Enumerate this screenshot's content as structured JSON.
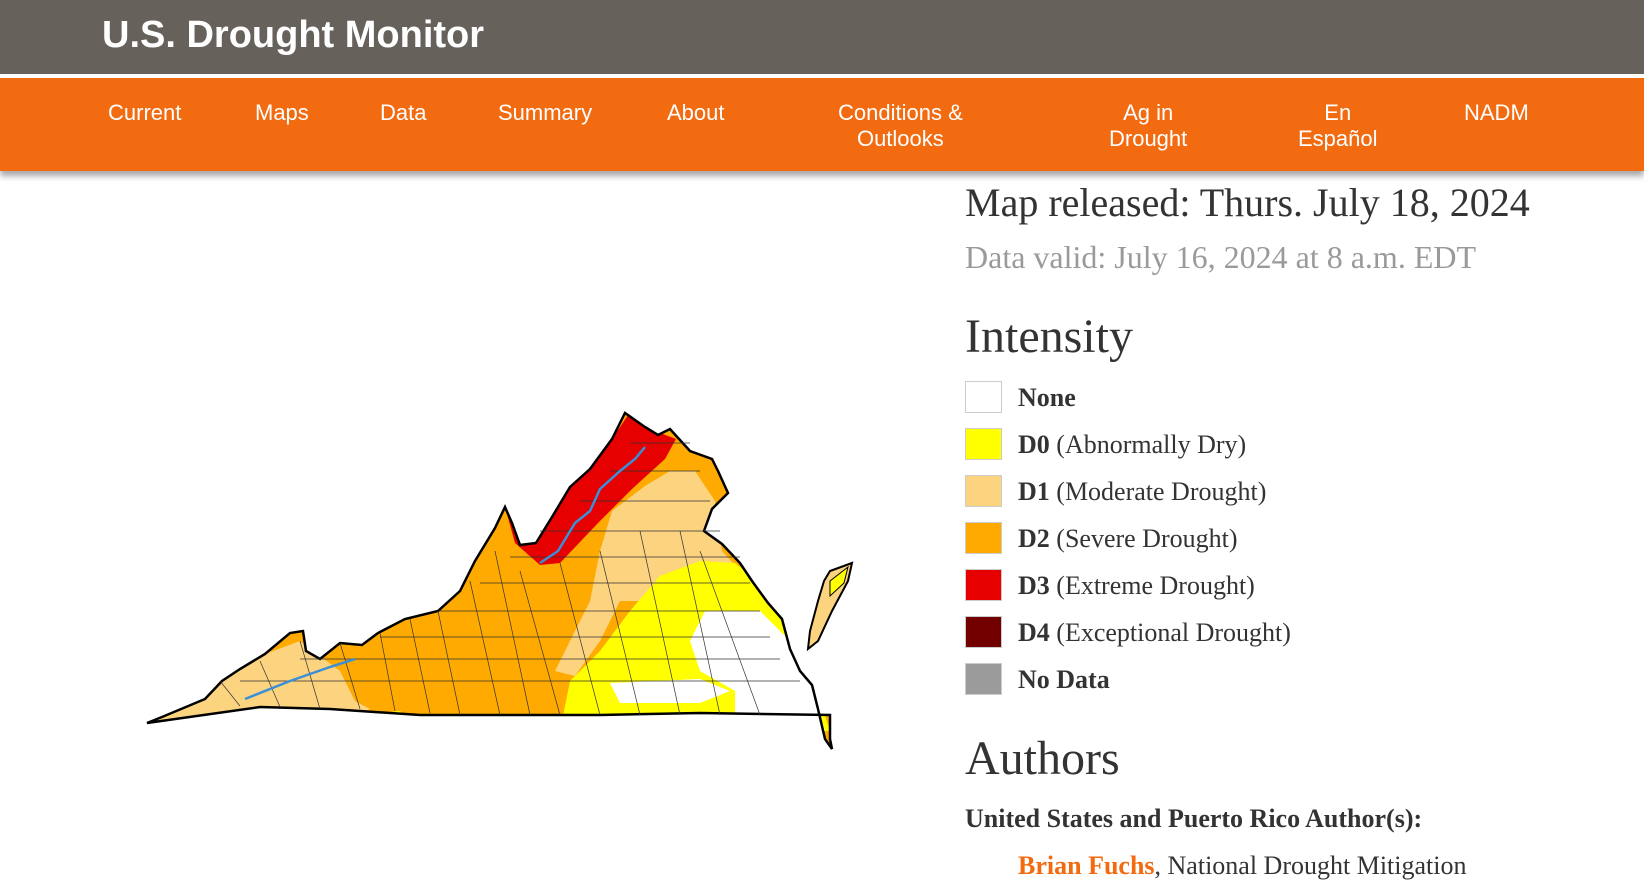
{
  "header": {
    "title": "U.S. Drought Monitor"
  },
  "nav": {
    "items": [
      {
        "label": "Current"
      },
      {
        "label": "Maps"
      },
      {
        "label": "Data"
      },
      {
        "label": "Summary"
      },
      {
        "label": "About"
      },
      {
        "label": "Conditions &\nOutlooks"
      },
      {
        "label": "Ag in\nDrought"
      },
      {
        "label": "En\nEspañol"
      },
      {
        "label": "NADM"
      }
    ]
  },
  "map": {
    "release": "Map released: Thurs. July 18, 2024",
    "valid": "Data valid: July 16, 2024 at 8 a.m. EDT"
  },
  "legend": {
    "heading": "Intensity",
    "items": [
      {
        "code": "",
        "label": "None",
        "color": "#ffffff"
      },
      {
        "code": "D0",
        "label": "(Abnormally Dry)",
        "color": "#ffff00"
      },
      {
        "code": "D1",
        "label": "(Moderate Drought)",
        "color": "#fcd37f"
      },
      {
        "code": "D2",
        "label": "(Severe Drought)",
        "color": "#ffaa00"
      },
      {
        "code": "D3",
        "label": "(Extreme Drought)",
        "color": "#e60000"
      },
      {
        "code": "D4",
        "label": "(Exceptional Drought)",
        "color": "#730000"
      },
      {
        "code": "",
        "label": "No Data",
        "color": "#9b9b9b"
      }
    ]
  },
  "authors": {
    "heading": "Authors",
    "subheading": "United States and Puerto Rico Author(s):",
    "first_name": "Brian Fuchs",
    "first_affiliation": ", National Drought Mitigation"
  },
  "colors": {
    "header_bg": "#67615c",
    "nav_bg": "#f26b10",
    "river": "#3a8fd8"
  }
}
